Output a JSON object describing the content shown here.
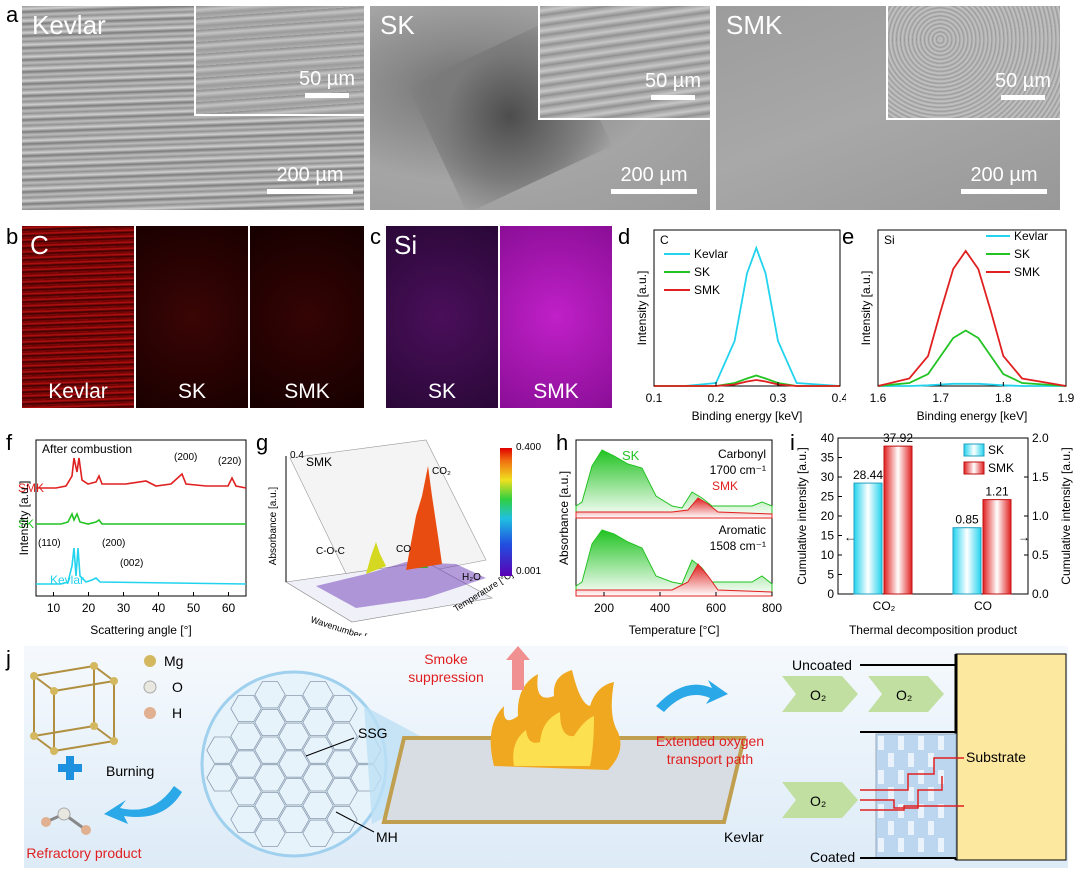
{
  "panel_a": {
    "label": "a",
    "images": [
      {
        "name": "Kevlar",
        "inset_scale": "50 µm",
        "main_scale": "200 µm"
      },
      {
        "name": "SK",
        "inset_scale": "50 µm",
        "main_scale": "200 µm"
      },
      {
        "name": "SMK",
        "inset_scale": "50 µm",
        "main_scale": "200 µm"
      }
    ]
  },
  "panel_b": {
    "label": "b",
    "element": "C",
    "samples": [
      "Kevlar",
      "SK",
      "SMK"
    ]
  },
  "panel_c": {
    "label": "c",
    "element": "Si",
    "samples": [
      "SK",
      "SMK"
    ]
  },
  "panel_d": {
    "label": "d",
    "element": "C",
    "legend": [
      "Kevlar",
      "SK",
      "SMK"
    ],
    "xlabel": "Binding energy [keV]",
    "ylabel": "Intensity [a.u.]"
  },
  "panel_e": {
    "label": "e",
    "element": "Si",
    "legend": [
      "Kevlar",
      "SK",
      "SMK"
    ],
    "xlabel": "Binding energy [keV]",
    "ylabel": "Intensity [a.u.]"
  },
  "panel_f": {
    "label": "f",
    "title": "After combustion",
    "series": [
      "SMK",
      "SK",
      "Kevlar"
    ],
    "peaks": [
      "(200)",
      "(220)",
      "(110)",
      "(200)",
      "(002)"
    ],
    "xlabel": "Scattering angle [°]",
    "ylabel": "Intensity [a.u.]"
  },
  "panel_g": {
    "label": "g",
    "sample": "SMK",
    "zlabel": "Absorbance [a.u.]",
    "xlabel": "Wavenumber [cm⁻¹]",
    "ylabel": "Temperature [°C]",
    "cbar_max": "0.400",
    "cbar_min": "0.001",
    "annotations": [
      "C-O-C",
      "CO",
      "CO₂",
      "H₂O"
    ]
  },
  "panel_h": {
    "label": "h",
    "top_label": "Carbonyl",
    "top_wn": "1700 cm⁻¹",
    "bottom_label": "Aromatic",
    "bottom_wn": "1508 cm⁻¹",
    "sk": "SK",
    "smk": "SMK",
    "xlabel": "Temperature [°C]",
    "ylabel": "Absorbance [a.u.]"
  },
  "panel_i": {
    "label": "i",
    "legend": [
      "SK",
      "SMK"
    ],
    "categories": [
      "CO₂",
      "CO"
    ],
    "values_text": [
      "28.44",
      "37.92",
      "0.85",
      "1.21"
    ],
    "xlabel": "Thermal decomposition product",
    "ylabel_left": "Cumulative intensity [a.u.]",
    "ylabel_right": "Cumulative intensity [a.u.]"
  },
  "panel_j": {
    "label": "j",
    "elements": [
      "Mg",
      "O",
      "H"
    ],
    "burning": "Burning",
    "refractory": "Refractory product",
    "ssg": "SSG",
    "mh": "MH",
    "smoke1": "Smoke",
    "smoke2": "suppression",
    "kevlar": "Kevlar",
    "uncoated": "Uncoated",
    "coated": "Coated",
    "o2": "O₂",
    "extended1": "Extended oxygen",
    "extended2": "transport path",
    "substrate": "Substrate"
  },
  "chart_data": [
    {
      "type": "line",
      "title": "C",
      "xlabel": "Binding energy [keV]",
      "ylabel": "Intensity [a.u.]",
      "xlim": [
        0.1,
        0.4
      ],
      "ylim": [
        0,
        1.0
      ],
      "x": [
        0.1,
        0.15,
        0.2,
        0.23,
        0.25,
        0.265,
        0.28,
        0.3,
        0.33,
        0.4
      ],
      "series": [
        {
          "name": "Kevlar",
          "color": "#22d3ee",
          "values": [
            0.0,
            0.0,
            0.02,
            0.3,
            0.75,
            0.92,
            0.75,
            0.3,
            0.02,
            0.0
          ]
        },
        {
          "name": "SK",
          "color": "#22c322",
          "values": [
            0.0,
            0.0,
            0.0,
            0.02,
            0.05,
            0.07,
            0.05,
            0.02,
            0.0,
            0.0
          ]
        },
        {
          "name": "SMK",
          "color": "#e02020",
          "values": [
            0.0,
            0.0,
            0.0,
            0.01,
            0.03,
            0.04,
            0.03,
            0.01,
            0.0,
            0.0
          ]
        }
      ],
      "xticks": [
        "0.1",
        "0.2",
        "0.3",
        "0.4"
      ]
    },
    {
      "type": "line",
      "title": "Si",
      "xlabel": "Binding energy [keV]",
      "ylabel": "Intensity [a.u.]",
      "xlim": [
        1.6,
        1.9
      ],
      "ylim": [
        0,
        1.0
      ],
      "x": [
        1.6,
        1.65,
        1.68,
        1.7,
        1.72,
        1.74,
        1.76,
        1.78,
        1.8,
        1.83,
        1.9
      ],
      "series": [
        {
          "name": "Kevlar",
          "color": "#22d3ee",
          "values": [
            0.0,
            0.0,
            0.005,
            0.01,
            0.015,
            0.015,
            0.015,
            0.01,
            0.005,
            0.0,
            0.0
          ]
        },
        {
          "name": "SK",
          "color": "#22c322",
          "values": [
            0.0,
            0.02,
            0.08,
            0.2,
            0.32,
            0.37,
            0.32,
            0.2,
            0.08,
            0.02,
            0.0
          ]
        },
        {
          "name": "SMK",
          "color": "#e02020",
          "values": [
            0.0,
            0.05,
            0.2,
            0.5,
            0.78,
            0.9,
            0.78,
            0.5,
            0.2,
            0.05,
            0.0
          ]
        }
      ],
      "xticks": [
        "1.6",
        "1.7",
        "1.8",
        "1.9"
      ]
    },
    {
      "type": "line",
      "title": "After combustion",
      "xlabel": "Scattering angle [°]",
      "ylabel": "Intensity [a.u.]",
      "xlim": [
        5,
        65
      ],
      "xticks": [
        "10",
        "20",
        "30",
        "40",
        "50",
        "60"
      ]
    },
    {
      "type": "bar",
      "title": "",
      "xlabel": "Thermal decomposition product",
      "ylabel": "Cumulative intensity [a.u.]",
      "categories": [
        "CO₂",
        "CO"
      ],
      "series": [
        {
          "name": "SK",
          "values": [
            28.44,
            0.85
          ]
        },
        {
          "name": "SMK",
          "values": [
            37.92,
            1.21
          ]
        }
      ],
      "ylim_left": [
        0,
        40
      ],
      "ylim_right": [
        0,
        2.0
      ],
      "yticks_left": [
        "0",
        "5",
        "10",
        "15",
        "20",
        "25",
        "30",
        "35",
        "40"
      ],
      "yticks_right": [
        "0.0",
        "0.5",
        "1.0",
        "1.5",
        "2.0"
      ]
    },
    {
      "type": "area",
      "title": "Carbonyl / Aromatic",
      "xlabel": "Temperature [°C]",
      "ylabel": "Absorbance [a.u.]",
      "xlim": [
        100,
        800
      ],
      "xticks": [
        "200",
        "400",
        "600",
        "800"
      ]
    }
  ]
}
